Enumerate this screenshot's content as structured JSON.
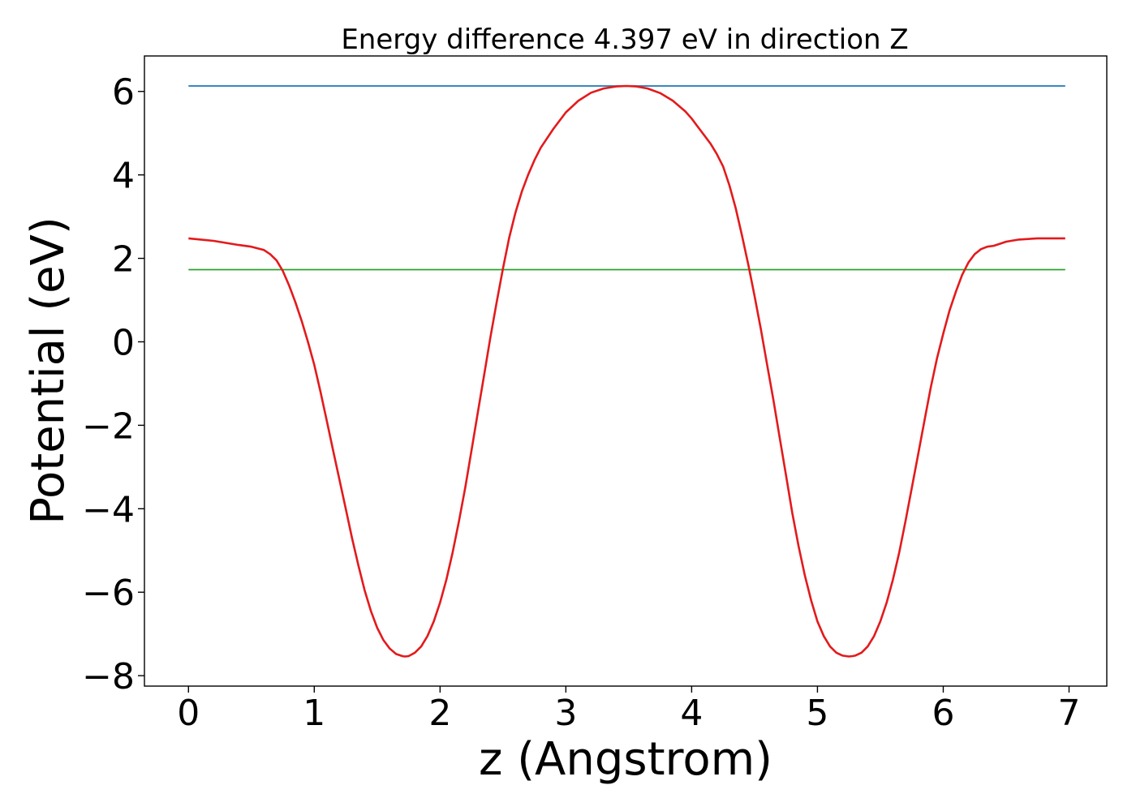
{
  "chart_data": {
    "type": "line",
    "title": "Energy difference 4.397 eV in direction Z",
    "xlabel": "z (Angstrom)",
    "ylabel": "Potential (eV)",
    "xlim": [
      -0.35,
      7.3
    ],
    "ylim": [
      -8.25,
      6.85
    ],
    "xticks": [
      0,
      1,
      2,
      3,
      4,
      5,
      6,
      7
    ],
    "xtick_labels": [
      "0",
      "1",
      "2",
      "3",
      "4",
      "5",
      "6",
      "7"
    ],
    "yticks": [
      -8,
      -6,
      -4,
      -2,
      0,
      2,
      4,
      6
    ],
    "ytick_labels": [
      "−8",
      "−6",
      "−4",
      "−2",
      "0",
      "2",
      "4",
      "6"
    ],
    "grid": false,
    "series": [
      {
        "color": "#1f77b4",
        "x": [
          0.0,
          6.97
        ],
        "y": [
          6.13,
          6.13
        ]
      },
      {
        "color": "#2ca02c",
        "x": [
          0.0,
          6.97
        ],
        "y": [
          1.73,
          1.73
        ]
      },
      {
        "color": "#e31a1c",
        "x": [
          0.0,
          0.2,
          0.4,
          0.5,
          0.6,
          0.65,
          0.7,
          0.75,
          0.8,
          0.85,
          0.9,
          0.95,
          1.0,
          1.05,
          1.1,
          1.15,
          1.2,
          1.25,
          1.3,
          1.35,
          1.4,
          1.45,
          1.5,
          1.55,
          1.6,
          1.65,
          1.7,
          1.72,
          1.75,
          1.8,
          1.85,
          1.9,
          1.95,
          2.0,
          2.05,
          2.1,
          2.15,
          2.2,
          2.25,
          2.3,
          2.35,
          2.4,
          2.45,
          2.5,
          2.55,
          2.6,
          2.65,
          2.7,
          2.75,
          2.8,
          2.9,
          3.0,
          3.1,
          3.2,
          3.3,
          3.4,
          3.48,
          3.56,
          3.65,
          3.75,
          3.85,
          3.95,
          4.0,
          4.05,
          4.1,
          4.15,
          4.2,
          4.25,
          4.3,
          4.35,
          4.4,
          4.45,
          4.5,
          4.55,
          4.6,
          4.65,
          4.7,
          4.75,
          4.8,
          4.85,
          4.9,
          4.95,
          5.0,
          5.05,
          5.1,
          5.15,
          5.2,
          5.25,
          5.28,
          5.3,
          5.35,
          5.4,
          5.45,
          5.5,
          5.55,
          5.6,
          5.65,
          5.7,
          5.75,
          5.8,
          5.85,
          5.9,
          5.95,
          6.0,
          6.05,
          6.1,
          6.15,
          6.2,
          6.25,
          6.3,
          6.35,
          6.4,
          6.45,
          6.5,
          6.6,
          6.75,
          6.97
        ],
        "y": [
          2.48,
          2.42,
          2.32,
          2.28,
          2.2,
          2.1,
          1.95,
          1.7,
          1.35,
          0.95,
          0.5,
          0.0,
          -0.55,
          -1.2,
          -1.9,
          -2.6,
          -3.3,
          -4.0,
          -4.7,
          -5.35,
          -5.95,
          -6.45,
          -6.85,
          -7.15,
          -7.35,
          -7.48,
          -7.53,
          -7.54,
          -7.53,
          -7.45,
          -7.3,
          -7.05,
          -6.7,
          -6.25,
          -5.7,
          -5.05,
          -4.3,
          -3.5,
          -2.6,
          -1.7,
          -0.8,
          0.1,
          0.95,
          1.75,
          2.5,
          3.1,
          3.6,
          4.0,
          4.35,
          4.65,
          5.1,
          5.5,
          5.78,
          5.97,
          6.07,
          6.12,
          6.13,
          6.12,
          6.07,
          5.96,
          5.78,
          5.52,
          5.35,
          5.15,
          4.95,
          4.75,
          4.5,
          4.2,
          3.75,
          3.2,
          2.55,
          1.85,
          1.1,
          0.3,
          -0.55,
          -1.4,
          -2.3,
          -3.2,
          -4.1,
          -4.9,
          -5.6,
          -6.2,
          -6.7,
          -7.05,
          -7.3,
          -7.45,
          -7.52,
          -7.54,
          -7.53,
          -7.52,
          -7.45,
          -7.3,
          -7.05,
          -6.7,
          -6.25,
          -5.7,
          -5.05,
          -4.3,
          -3.5,
          -2.7,
          -1.9,
          -1.1,
          -0.4,
          0.2,
          0.75,
          1.2,
          1.6,
          1.9,
          2.1,
          2.22,
          2.28,
          2.3,
          2.35,
          2.4,
          2.45,
          2.48,
          2.48
        ]
      }
    ]
  }
}
